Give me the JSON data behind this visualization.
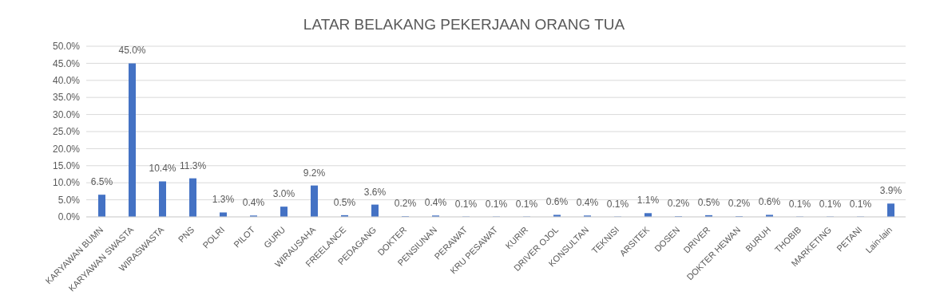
{
  "chart_data": {
    "type": "bar",
    "title": "LATAR BELAKANG PEKERJAAN ORANG TUA",
    "categories": [
      "KARYAWAN BUMN",
      "KARYAWAN SWASTA",
      "WIRASWASTA",
      "PNS",
      "POLRI",
      "PILOT",
      "GURU",
      "WIRAUSAHA",
      "FREELANCE",
      "PEDAGANG",
      "DOKTER",
      "PENSIUNAN",
      "PERAWAT",
      "KRU PESAWAT",
      "KURIR",
      "DRIVER OJOL",
      "KONSULTAN",
      "TEKNISI",
      "ARSITEK",
      "DOSEN",
      "DRIVER",
      "DOKTER HEWAN",
      "BURUH",
      "THOBIB",
      "MARKETING",
      "PETANI",
      "Lain-lain"
    ],
    "values": [
      6.5,
      45.0,
      10.4,
      11.3,
      1.3,
      0.4,
      3.0,
      9.2,
      0.5,
      3.6,
      0.2,
      0.4,
      0.1,
      0.1,
      0.1,
      0.6,
      0.4,
      0.1,
      1.1,
      0.2,
      0.5,
      0.2,
      0.6,
      0.1,
      0.1,
      0.1,
      3.9
    ],
    "value_labels": [
      "6.5%",
      "45.0%",
      "10.4%",
      "11.3%",
      "1.3%",
      "0.4%",
      "3.0%",
      "9.2%",
      "0.5%",
      "3.6%",
      "0.2%",
      "0.4%",
      "0.1%",
      "0.1%",
      "0.1%",
      "0.6%",
      "0.4%",
      "0.1%",
      "1.1%",
      "0.2%",
      "0.5%",
      "0.2%",
      "0.6%",
      "0.1%",
      "0.1%",
      "0.1%",
      "3.9%"
    ],
    "color": "#4472c4",
    "ylim": [
      0,
      50
    ],
    "yticks": [
      {
        "value": 0,
        "label": "0.0%"
      },
      {
        "value": 5,
        "label": "5.0%"
      },
      {
        "value": 10,
        "label": "10.0%"
      },
      {
        "value": 15,
        "label": "15.0%"
      },
      {
        "value": 20,
        "label": "20.0%"
      },
      {
        "value": 25,
        "label": "25.0%"
      },
      {
        "value": 30,
        "label": "30.0%"
      },
      {
        "value": 35,
        "label": "35.0%"
      },
      {
        "value": 40,
        "label": "40.0%"
      },
      {
        "value": 45,
        "label": "45.0%"
      },
      {
        "value": 50,
        "label": "50.0%"
      }
    ],
    "grid": "y"
  }
}
